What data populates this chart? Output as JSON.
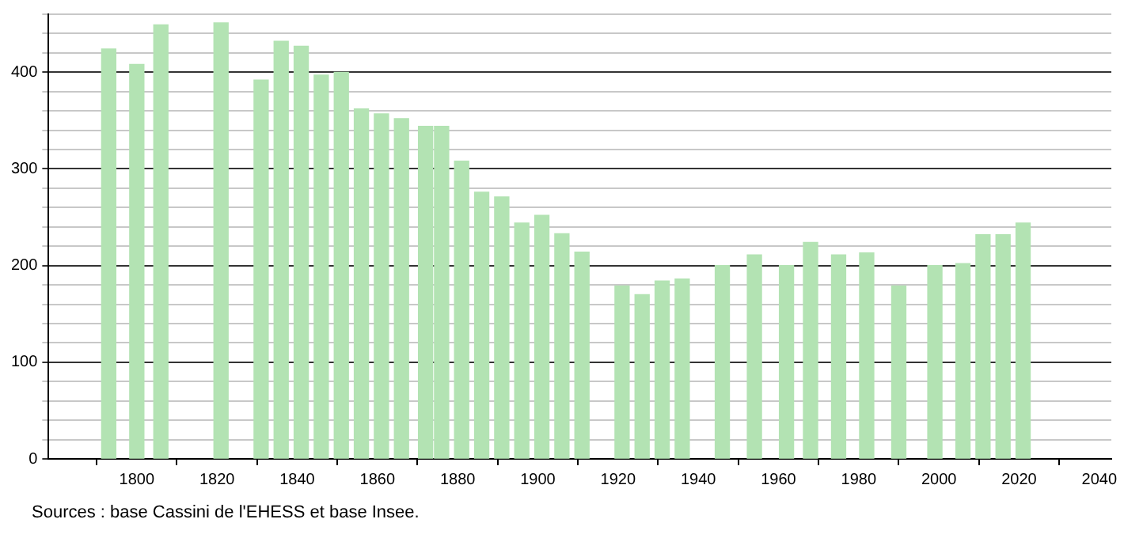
{
  "chart_data": {
    "type": "bar",
    "x": [
      1793,
      1800,
      1806,
      1821,
      1831,
      1836,
      1841,
      1846,
      1851,
      1856,
      1861,
      1866,
      1872,
      1876,
      1881,
      1886,
      1891,
      1896,
      1901,
      1906,
      1911,
      1921,
      1926,
      1931,
      1936,
      1946,
      1954,
      1962,
      1968,
      1975,
      1982,
      1990,
      1999,
      2006,
      2011,
      2016,
      2021
    ],
    "values": [
      424,
      408,
      449,
      451,
      392,
      432,
      427,
      397,
      400,
      362,
      357,
      352,
      344,
      344,
      308,
      276,
      271,
      244,
      252,
      233,
      214,
      179,
      170,
      184,
      186,
      200,
      211,
      200,
      224,
      211,
      213,
      179,
      200,
      202,
      232,
      232,
      244
    ],
    "color": "#b3e3b3",
    "xlim": [
      1778,
      2043
    ],
    "xticks": [
      1800,
      1820,
      1840,
      1860,
      1880,
      1900,
      1920,
      1940,
      1960,
      1980,
      2000,
      2020,
      2040
    ],
    "ylim": [
      0,
      460
    ],
    "yticks": [
      0,
      {
        "value": 20,
        "label": null
      },
      {
        "value": 40,
        "label": null
      },
      {
        "value": 60,
        "label": null
      },
      {
        "value": 80,
        "label": null
      },
      100,
      {
        "value": 120,
        "label": null
      },
      {
        "value": 140,
        "label": null
      },
      {
        "value": 160,
        "label": null
      },
      {
        "value": 180,
        "label": null
      },
      200,
      {
        "value": 220,
        "label": null
      },
      {
        "value": 240,
        "label": null
      },
      {
        "value": 260,
        "label": null
      },
      {
        "value": 280,
        "label": null
      },
      300,
      {
        "value": 320,
        "label": null
      },
      {
        "value": 340,
        "label": null
      },
      {
        "value": 360,
        "label": null
      },
      {
        "value": 380,
        "label": null
      },
      400,
      {
        "value": 420,
        "label": null
      },
      {
        "value": 440,
        "label": null
      },
      {
        "value": 460,
        "label": null
      }
    ],
    "grid": "y",
    "annotations": [
      "Sources : base Cassini de l'EHESS et base Insee."
    ]
  }
}
